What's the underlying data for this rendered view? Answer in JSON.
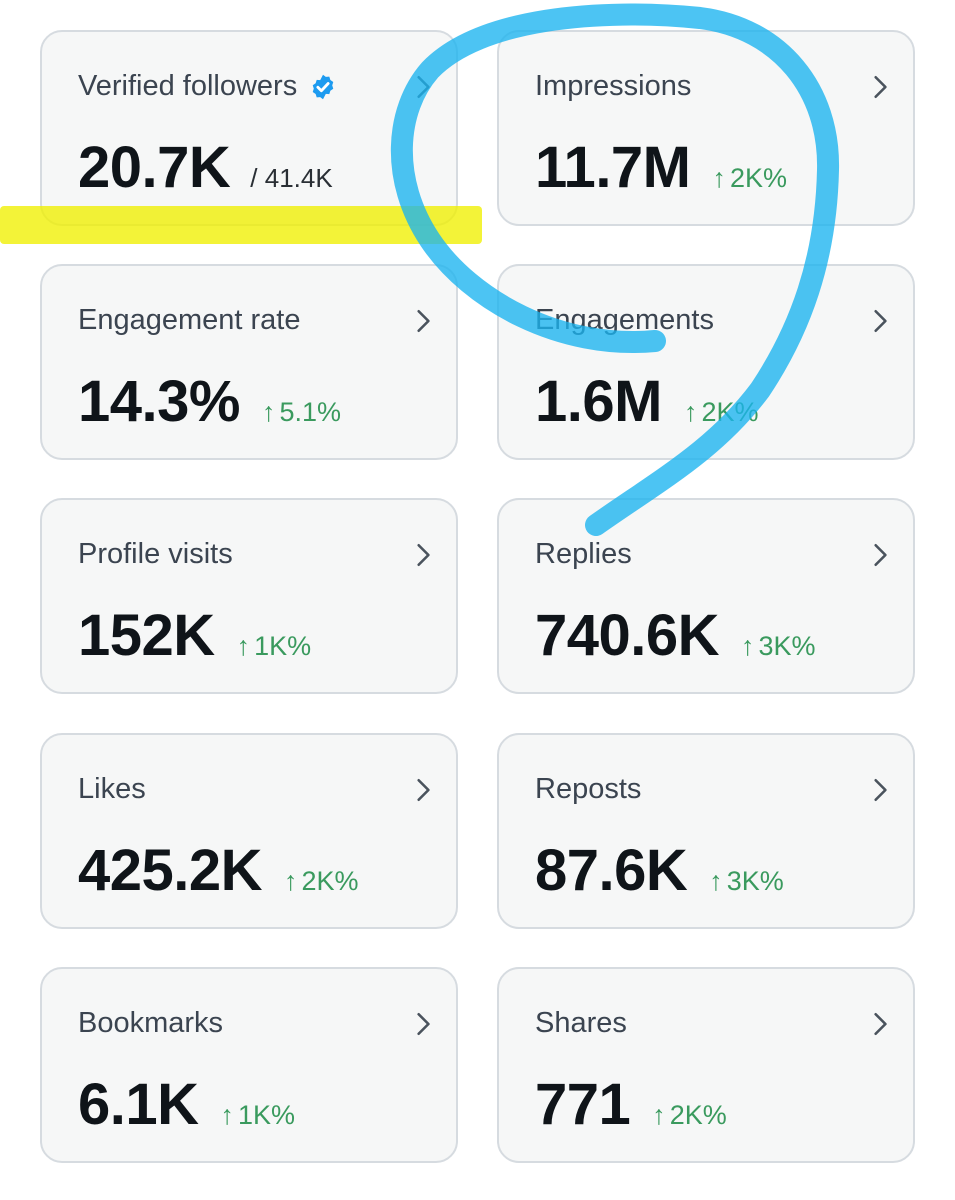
{
  "colors": {
    "card_background": "#f6f7f7",
    "card_border": "#d6dbe0",
    "label": "#3b4450",
    "value": "#0f1419",
    "positive_change": "#3a9a5e",
    "verified_badge": "#1d9bf0",
    "highlighter_yellow": "#f0f000",
    "marker_blue": "#19b4f0"
  },
  "icons": {
    "chevron": "chevron-right-icon",
    "verified": "verified-badge-icon",
    "change": "up-arrow-icon"
  },
  "cards": {
    "verified_followers": {
      "label": "Verified followers",
      "value": "20.7K",
      "total": "/ 41.4K"
    },
    "impressions": {
      "label": "Impressions",
      "value": "11.7M",
      "arrow": "↑",
      "change": "2K%"
    },
    "engagement_rate": {
      "label": "Engagement rate",
      "value": "14.3%",
      "arrow": "↑",
      "change": "5.1%"
    },
    "engagements": {
      "label": "Engagements",
      "value": "1.6M",
      "arrow": "↑",
      "change": "2K%"
    },
    "profile_visits": {
      "label": "Profile visits",
      "value": "152K",
      "arrow": "↑",
      "change": "1K%"
    },
    "replies": {
      "label": "Replies",
      "value": "740.6K",
      "arrow": "↑",
      "change": "3K%"
    },
    "likes": {
      "label": "Likes",
      "value": "425.2K",
      "arrow": "↑",
      "change": "2K%"
    },
    "reposts": {
      "label": "Reposts",
      "value": "87.6K",
      "arrow": "↑",
      "change": "3K%"
    },
    "bookmarks": {
      "label": "Bookmarks",
      "value": "6.1K",
      "arrow": "↑",
      "change": "1K%"
    },
    "shares": {
      "label": "Shares",
      "value": "771",
      "arrow": "↑",
      "change": "2K%"
    }
  }
}
